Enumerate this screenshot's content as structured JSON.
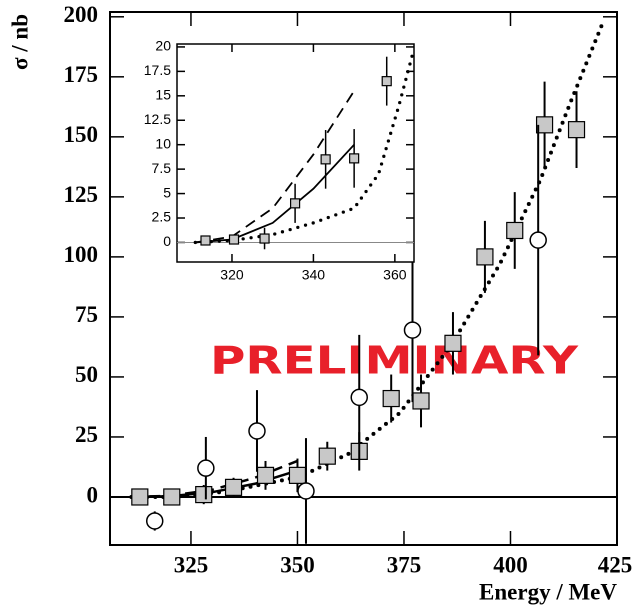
{
  "chart_data": [
    {
      "type": "scatter",
      "xlabel": "Energy / MeV",
      "ylabel": "σ / nb",
      "annotation": "PRELIMINARY",
      "annotation_color": "#e8202a",
      "xlim": [
        306,
        425
      ],
      "ylim": [
        -20,
        202
      ],
      "xticks": [
        325,
        350,
        375,
        400,
        425
      ],
      "yticks": [
        0,
        25,
        50,
        75,
        100,
        125,
        150,
        175,
        200
      ],
      "hline": 0,
      "series": [
        {
          "marker": "square",
          "color": "#c8c8c8",
          "x": [
            313,
            320.5,
            328,
            335,
            342.5,
            350,
            357,
            364.5,
            372,
            379,
            386.5,
            394,
            401,
            408,
            415.5
          ],
          "values": [
            0,
            0,
            1,
            4,
            9,
            9,
            17,
            19,
            41,
            40,
            64,
            100,
            111,
            155,
            153
          ],
          "errors": [
            0.5,
            0.5,
            4,
            4,
            6,
            7,
            6,
            8,
            10,
            11,
            13,
            15,
            16,
            18,
            16
          ]
        },
        {
          "marker": "circle",
          "color": "#ffffff",
          "x": [
            316.5,
            328.5,
            340.5,
            352,
            364.5,
            377,
            406.5
          ],
          "values": [
            -10,
            12,
            27.5,
            2.5,
            41.5,
            69.5,
            107
          ],
          "errors": [
            4,
            13,
            17,
            22,
            26,
            30,
            48
          ]
        },
        {
          "line": "dotted",
          "color": "#000000",
          "x": [
            311,
            320,
            325,
            334,
            350.5,
            362,
            374,
            386,
            397.5,
            407,
            414,
            422
          ],
          "values": [
            0,
            0,
            0.5,
            2.5,
            8.4,
            18,
            35,
            63,
            97,
            132,
            164,
            199
          ]
        },
        {
          "line": "solid",
          "color": "#000000",
          "x": [
            311,
            320,
            330,
            340,
            350
          ],
          "values": [
            0,
            0.3,
            2,
            5.5,
            11
          ]
        },
        {
          "line": "dashed",
          "color": "#000000",
          "x": [
            311,
            320,
            330,
            340,
            350
          ],
          "values": [
            0,
            0.5,
            3,
            8,
            15
          ]
        }
      ]
    },
    {
      "type": "scatter",
      "xlim": [
        306.5,
        364.7
      ],
      "ylim": [
        -2,
        20.3
      ],
      "xticks": [
        320,
        340,
        360
      ],
      "yticks": [
        0,
        2.5,
        5,
        7.5,
        10,
        12.5,
        15,
        17.5,
        20
      ],
      "hline": 0,
      "series": [
        {
          "marker": "square",
          "color": "#c8c8c8",
          "x": [
            313.5,
            320.5,
            328,
            335.5,
            343,
            350,
            358
          ],
          "values": [
            0.2,
            0.3,
            0.4,
            4,
            8.5,
            8.6,
            16.5
          ],
          "errors": [
            0.3,
            0.4,
            1.1,
            2,
            3,
            3,
            2.5
          ]
        },
        {
          "line": "dotted",
          "color": "#000000",
          "x": [
            311,
            320,
            330,
            340,
            350,
            356,
            361,
            364.5
          ],
          "values": [
            0,
            0.2,
            0.8,
            2,
            3.5,
            7,
            14,
            19.5
          ]
        },
        {
          "line": "solid",
          "color": "#000000",
          "x": [
            311,
            320,
            330,
            340,
            350
          ],
          "values": [
            0,
            0.3,
            2,
            5.5,
            10
          ]
        },
        {
          "line": "dashed",
          "color": "#000000",
          "x": [
            311,
            320,
            330,
            340,
            350
          ],
          "values": [
            0,
            0.6,
            3.5,
            9,
            15.5
          ]
        }
      ]
    }
  ]
}
